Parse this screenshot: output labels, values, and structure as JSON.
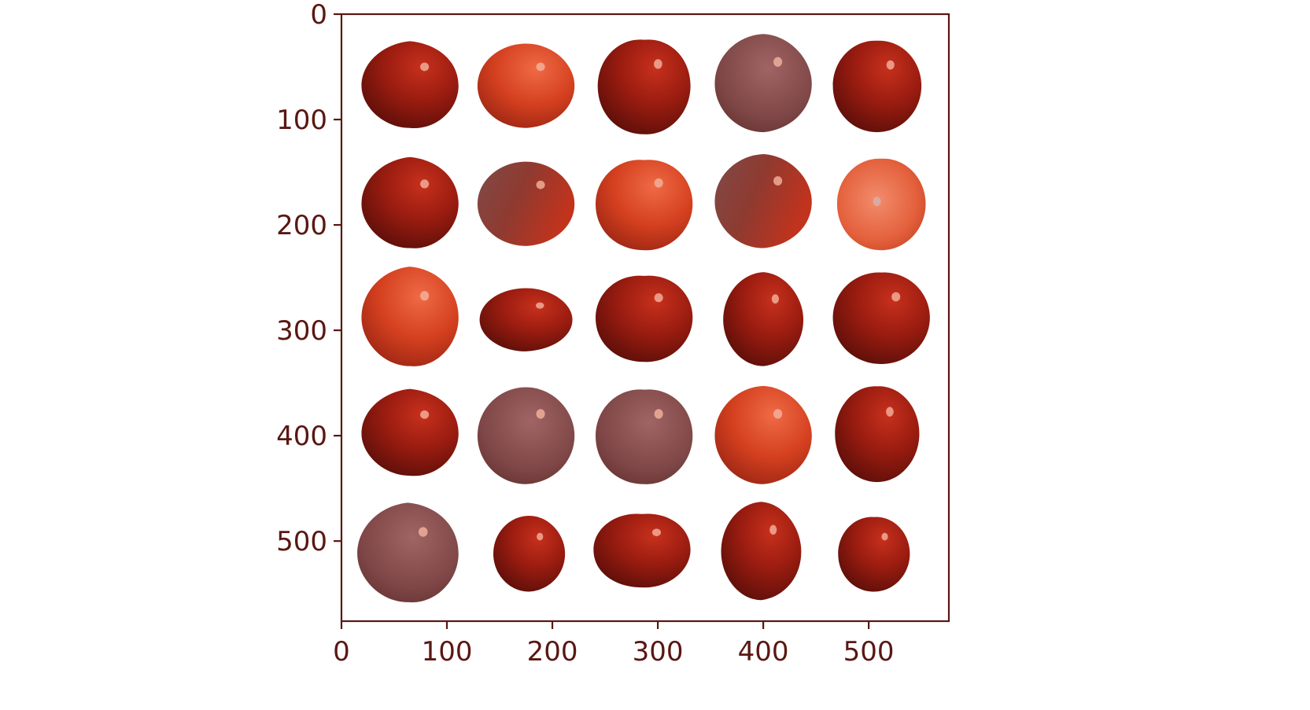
{
  "chart_data": {
    "type": "image",
    "description_ref": "imshow grid of generated apple images",
    "xlim": [
      0,
      576
    ],
    "ylim": [
      576,
      0
    ],
    "xticks": [
      0,
      100,
      200,
      300,
      400,
      500
    ],
    "yticks": [
      0,
      100,
      200,
      300,
      400,
      500
    ],
    "xtick_labels": [
      "0",
      "100",
      "200",
      "300",
      "400",
      "500"
    ],
    "ytick_labels": [
      "0",
      "100",
      "200",
      "300",
      "400",
      "500"
    ],
    "title": "",
    "xlabel": "",
    "ylabel": "",
    "grid": false,
    "axis_color": "#5a1712",
    "background": "#ffffff",
    "grid_shape": [
      5,
      5
    ],
    "tiles": [
      {
        "row": 0,
        "col": 0,
        "cx": 65,
        "cy": 68,
        "rx": 46,
        "ry": 40,
        "tone": "dark"
      },
      {
        "row": 0,
        "col": 1,
        "cx": 175,
        "cy": 68,
        "rx": 46,
        "ry": 40,
        "tone": "bright"
      },
      {
        "row": 0,
        "col": 2,
        "cx": 287,
        "cy": 68,
        "rx": 44,
        "ry": 46,
        "tone": "dark"
      },
      {
        "row": 0,
        "col": 3,
        "cx": 400,
        "cy": 66,
        "rx": 46,
        "ry": 46,
        "tone": "muted"
      },
      {
        "row": 0,
        "col": 4,
        "cx": 508,
        "cy": 68,
        "rx": 42,
        "ry": 44,
        "tone": "dark"
      },
      {
        "row": 1,
        "col": 0,
        "cx": 65,
        "cy": 180,
        "rx": 46,
        "ry": 42,
        "tone": "dark"
      },
      {
        "row": 1,
        "col": 1,
        "cx": 175,
        "cy": 180,
        "rx": 46,
        "ry": 40,
        "tone": "mixed"
      },
      {
        "row": 1,
        "col": 2,
        "cx": 287,
        "cy": 180,
        "rx": 46,
        "ry": 44,
        "tone": "bright"
      },
      {
        "row": 1,
        "col": 3,
        "cx": 400,
        "cy": 178,
        "rx": 46,
        "ry": 44,
        "tone": "mixed"
      },
      {
        "row": 1,
        "col": 4,
        "cx": 512,
        "cy": 180,
        "rx": 42,
        "ry": 44,
        "tone": "light"
      },
      {
        "row": 2,
        "col": 0,
        "cx": 65,
        "cy": 288,
        "rx": 46,
        "ry": 46,
        "tone": "bright"
      },
      {
        "row": 2,
        "col": 1,
        "cx": 175,
        "cy": 290,
        "rx": 44,
        "ry": 30,
        "tone": "dark"
      },
      {
        "row": 2,
        "col": 2,
        "cx": 287,
        "cy": 288,
        "rx": 46,
        "ry": 42,
        "tone": "dark"
      },
      {
        "row": 2,
        "col": 3,
        "cx": 400,
        "cy": 290,
        "rx": 38,
        "ry": 44,
        "tone": "dark"
      },
      {
        "row": 2,
        "col": 4,
        "cx": 512,
        "cy": 288,
        "rx": 46,
        "ry": 44,
        "tone": "dark"
      },
      {
        "row": 3,
        "col": 0,
        "cx": 65,
        "cy": 398,
        "rx": 46,
        "ry": 40,
        "tone": "dark"
      },
      {
        "row": 3,
        "col": 1,
        "cx": 175,
        "cy": 400,
        "rx": 46,
        "ry": 46,
        "tone": "muted"
      },
      {
        "row": 3,
        "col": 2,
        "cx": 287,
        "cy": 400,
        "rx": 46,
        "ry": 46,
        "tone": "muted"
      },
      {
        "row": 3,
        "col": 3,
        "cx": 400,
        "cy": 400,
        "rx": 46,
        "ry": 46,
        "tone": "bright"
      },
      {
        "row": 3,
        "col": 4,
        "cx": 508,
        "cy": 398,
        "rx": 40,
        "ry": 46,
        "tone": "dark"
      },
      {
        "row": 4,
        "col": 0,
        "cx": 63,
        "cy": 512,
        "rx": 48,
        "ry": 46,
        "tone": "muted"
      },
      {
        "row": 4,
        "col": 1,
        "cx": 178,
        "cy": 512,
        "rx": 34,
        "ry": 36,
        "tone": "dark"
      },
      {
        "row": 4,
        "col": 2,
        "cx": 285,
        "cy": 508,
        "rx": 46,
        "ry": 36,
        "tone": "dark"
      },
      {
        "row": 4,
        "col": 3,
        "cx": 398,
        "cy": 510,
        "rx": 38,
        "ry": 46,
        "tone": "dark"
      },
      {
        "row": 4,
        "col": 4,
        "cx": 505,
        "cy": 512,
        "rx": 34,
        "ry": 36,
        "tone": "dark"
      }
    ]
  }
}
